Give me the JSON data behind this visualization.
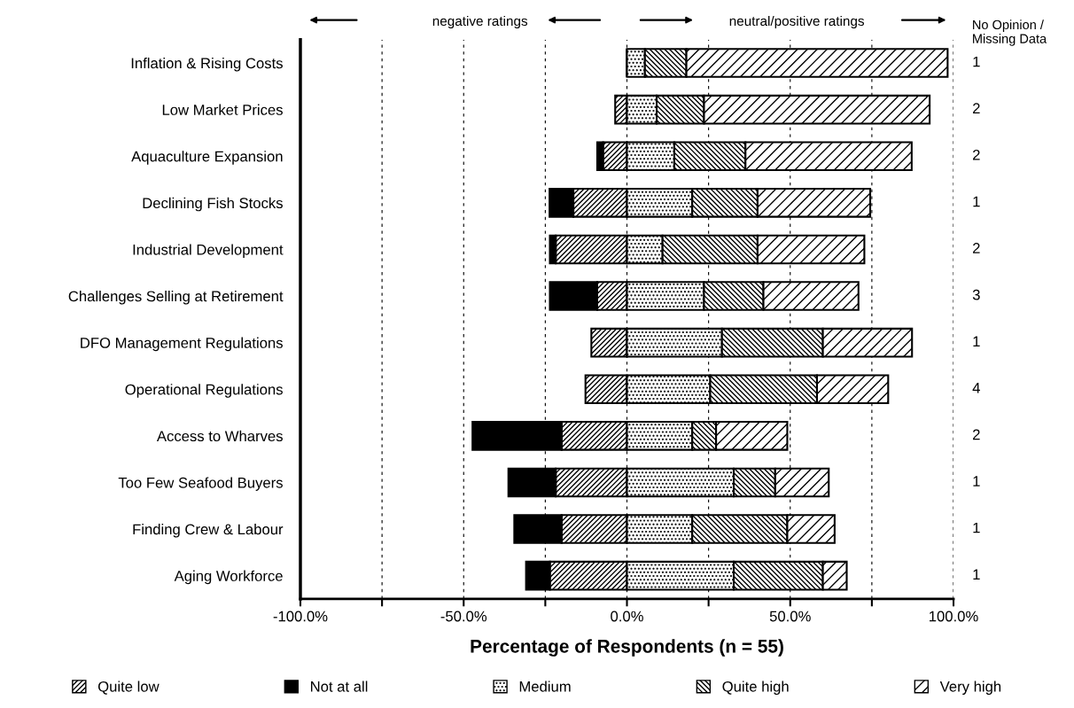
{
  "chart_data": {
    "type": "bar",
    "orientation": "horizontal",
    "stacked": true,
    "categories": [
      "Inflation & Rising Costs",
      "Low Market Prices",
      "Aquaculture Expansion",
      "Declining Fish Stocks",
      "Industrial Development",
      "Challenges Selling at Retirement",
      "DFO Management Regulations",
      "Operational Regulations",
      "Access to Wharves",
      "Too Few Seafood Buyers",
      "Finding Crew & Labour",
      "Aging Workforce"
    ],
    "series": [
      {
        "name": "Quite low",
        "color": "#000000",
        "values": [
          0,
          -3.6,
          -7.3,
          -16.4,
          -21.8,
          -9.1,
          -10.9,
          -12.7,
          -20.0,
          -21.8,
          -20.0,
          -23.6
        ]
      },
      {
        "name": "Not at all",
        "color": "#000000",
        "values": [
          0,
          0,
          -1.8,
          -7.3,
          -1.8,
          -14.5,
          0,
          0,
          -27.3,
          -14.5,
          -14.5,
          -7.3
        ]
      },
      {
        "name": "Medium",
        "color": "#000000",
        "values": [
          5.5,
          9.1,
          14.5,
          20.0,
          10.9,
          23.6,
          29.1,
          25.5,
          20.0,
          32.7,
          20.0,
          32.7
        ]
      },
      {
        "name": "Quite high",
        "color": "#000000",
        "values": [
          12.7,
          14.5,
          21.8,
          20.0,
          29.1,
          18.2,
          30.9,
          32.7,
          7.3,
          12.7,
          29.1,
          27.3
        ]
      },
      {
        "name": "Very high",
        "color": "#000000",
        "values": [
          80.0,
          69.1,
          50.9,
          34.5,
          32.7,
          29.1,
          27.3,
          21.8,
          21.8,
          16.4,
          14.5,
          7.3
        ]
      }
    ],
    "xlabel": "Percentage of Respondents (n = 55)",
    "xlim": [
      -100,
      100
    ],
    "xticks": [
      {
        "value": -100,
        "label": "-100.0%"
      },
      {
        "value": -75,
        "label": null
      },
      {
        "value": -50,
        "label": "-50.0%"
      },
      {
        "value": -25,
        "label": null
      },
      {
        "value": 0,
        "label": "0.0%"
      },
      {
        "value": 25,
        "label": null
      },
      {
        "value": 50,
        "label": "50.0%"
      },
      {
        "value": 75,
        "label": null
      },
      {
        "value": 100,
        "label": "100.0%"
      }
    ],
    "grid": "x",
    "legend": "bottom",
    "annotations": [
      "negative ratings",
      "neutral/positive ratings",
      "No Opinion / Missing Data",
      "1",
      "2",
      "2",
      "1",
      "2",
      "3",
      "1",
      "4",
      "2",
      "1",
      "1",
      "1"
    ]
  }
}
